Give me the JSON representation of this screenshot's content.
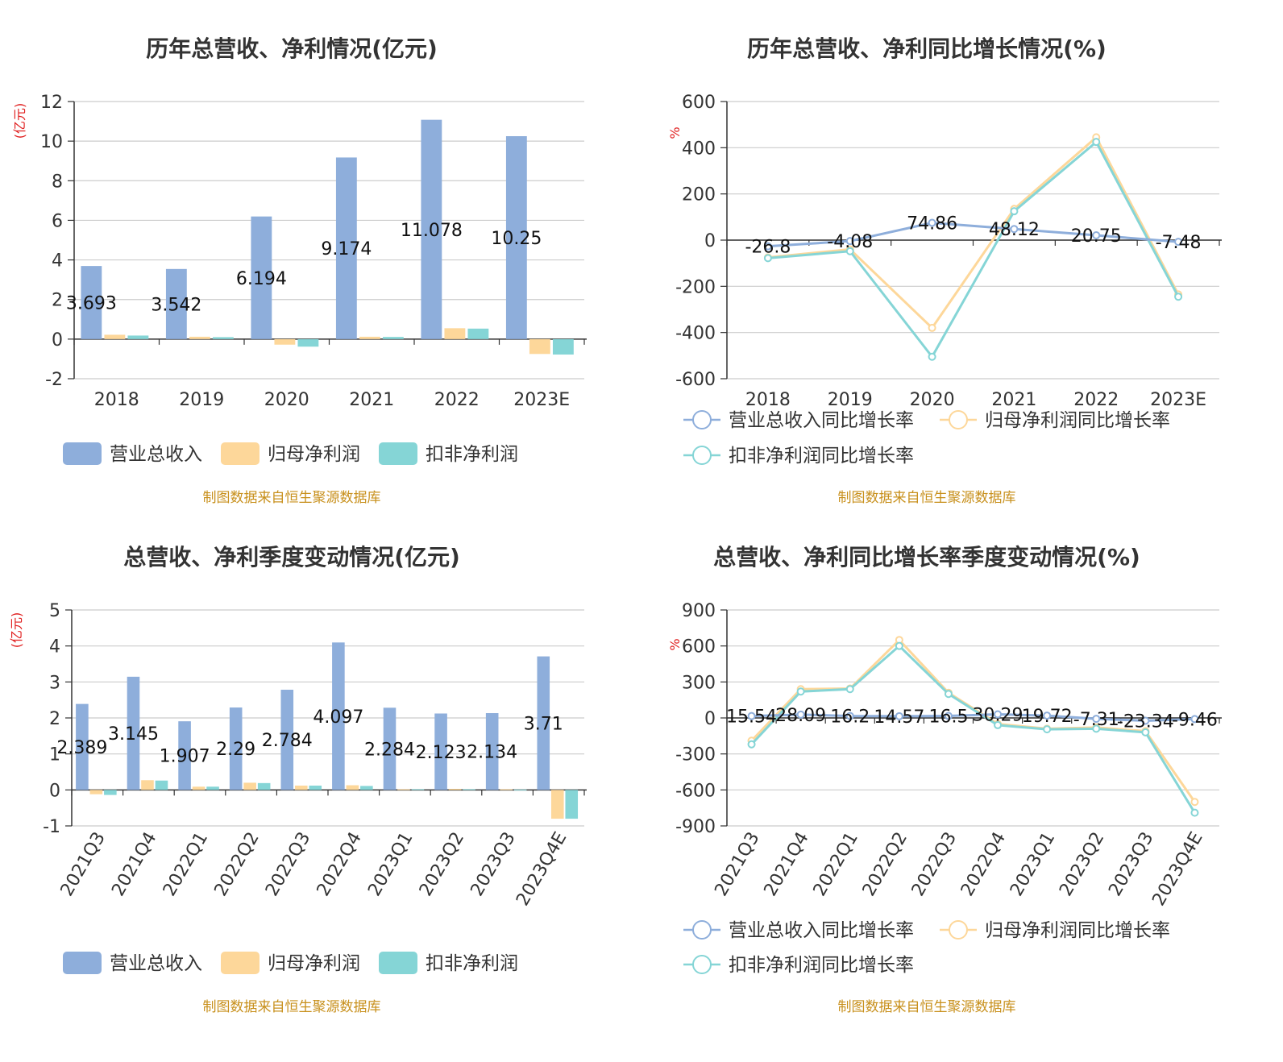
{
  "colors": {
    "revenue": "#8eaedb",
    "net_profit": "#fdd79a",
    "deducted_profit": "#85d5d6",
    "grid": "#cccccc",
    "axis": "#333333"
  },
  "chart_data": [
    {
      "type": "bar",
      "title": "历年总营收、净利情况(亿元)",
      "ylabel": "(亿元)",
      "categories": [
        "2018",
        "2019",
        "2020",
        "2021",
        "2022",
        "2023E"
      ],
      "ylim": [
        -2,
        12
      ],
      "yticks": [
        -2,
        0,
        2,
        4,
        6,
        8,
        10,
        12
      ],
      "series": [
        {
          "name": "营业总收入",
          "values": [
            3.693,
            3.542,
            6.194,
            9.174,
            11.078,
            10.25
          ],
          "labels": [
            "3.693",
            "3.542",
            "6.194",
            "9.174",
            "11.078",
            "10.25"
          ]
        },
        {
          "name": "归母净利润",
          "values": [
            0.22,
            0.12,
            -0.28,
            0.12,
            0.55,
            -0.75
          ]
        },
        {
          "name": "扣非净利润",
          "values": [
            0.18,
            0.1,
            -0.38,
            0.11,
            0.53,
            -0.78
          ]
        }
      ],
      "legend": "bottom",
      "source": "制图数据来自恒生聚源数据库"
    },
    {
      "type": "line",
      "title": "历年总营收、净利同比增长情况(%)",
      "ylabel": "%",
      "categories": [
        "2018",
        "2019",
        "2020",
        "2021",
        "2022",
        "2023E"
      ],
      "ylim": [
        -600,
        600
      ],
      "yticks": [
        -600,
        -400,
        -200,
        0,
        200,
        400,
        600
      ],
      "series": [
        {
          "name": "营业总收入同比增长率",
          "values": [
            -26.8,
            -4.08,
            74.86,
            48.12,
            20.75,
            -7.48
          ],
          "labels": [
            "-26.8",
            "-4.08",
            "74.86",
            "48.12",
            "20.75",
            "-7.48"
          ]
        },
        {
          "name": "归母净利润同比增长率",
          "values": [
            -75,
            -40,
            -380,
            135,
            445,
            -235
          ]
        },
        {
          "name": "扣非净利润同比增长率",
          "values": [
            -78,
            -48,
            -505,
            125,
            425,
            -245
          ]
        }
      ],
      "legend": "bottom",
      "source": "制图数据来自恒生聚源数据库"
    },
    {
      "type": "bar",
      "title": "总营收、净利季度变动情况(亿元)",
      "ylabel": "(亿元)",
      "categories": [
        "2021Q3",
        "2021Q4",
        "2022Q1",
        "2022Q2",
        "2022Q3",
        "2022Q4",
        "2023Q1",
        "2023Q2",
        "2023Q3",
        "2023Q4E"
      ],
      "ylim": [
        -1,
        5
      ],
      "yticks": [
        -1,
        0,
        1,
        2,
        3,
        4,
        5
      ],
      "series": [
        {
          "name": "营业总收入",
          "values": [
            2.389,
            3.145,
            1.907,
            2.29,
            2.784,
            4.097,
            2.284,
            2.123,
            2.134,
            3.71
          ],
          "labels": [
            "2.389",
            "3.145",
            "1.907",
            "2.29",
            "2.784",
            "4.097",
            "2.284",
            "2.123",
            "2.134",
            "3.71"
          ]
        },
        {
          "name": "归母净利润",
          "values": [
            -0.12,
            0.27,
            0.09,
            0.2,
            0.12,
            0.13,
            0.02,
            0.03,
            0.02,
            -0.8
          ]
        },
        {
          "name": "扣非净利润",
          "values": [
            -0.14,
            0.26,
            0.09,
            0.19,
            0.12,
            0.11,
            0.02,
            0.02,
            0.01,
            -0.8
          ]
        }
      ],
      "legend": "bottom",
      "source": "制图数据来自恒生聚源数据库"
    },
    {
      "type": "line",
      "title": "总营收、净利同比增长率季度变动情况(%)",
      "ylabel": "%",
      "categories": [
        "2021Q3",
        "2021Q4",
        "2022Q1",
        "2022Q2",
        "2022Q3",
        "2022Q4",
        "2023Q1",
        "2023Q2",
        "2023Q3",
        "2023Q4E"
      ],
      "ylim": [
        -900,
        900
      ],
      "yticks": [
        -900,
        -600,
        -300,
        0,
        300,
        600,
        900
      ],
      "series": [
        {
          "name": "营业总收入同比增长率",
          "values": [
            15.54,
            28.09,
            16.2,
            14.57,
            16.5,
            30.29,
            19.72,
            -7.31,
            -23.34,
            -9.46
          ],
          "labels": [
            "15.54",
            "28.09",
            "16.2",
            "14.57",
            "16.5",
            "30.29",
            "19.72",
            "-7.31",
            "-23.34",
            "-9.46"
          ]
        },
        {
          "name": "归母净利润同比增长率",
          "values": [
            -190,
            240,
            245,
            650,
            210,
            -50,
            -90,
            -80,
            -110,
            -700
          ]
        },
        {
          "name": "扣非净利润同比增长率",
          "values": [
            -220,
            220,
            240,
            600,
            200,
            -60,
            -95,
            -90,
            -120,
            -790
          ]
        }
      ],
      "legend": "bottom",
      "source": "制图数据来自恒生聚源数据库"
    }
  ]
}
